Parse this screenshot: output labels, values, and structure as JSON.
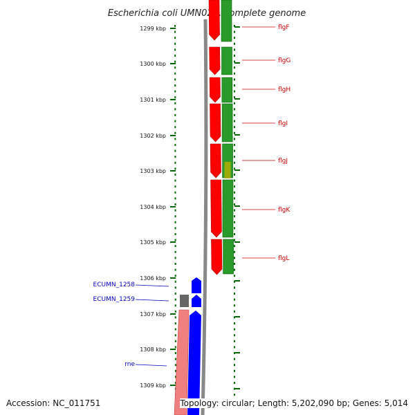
{
  "title": "Escherichia coli UMN026, complete genome",
  "accession": "Accession: NC_011751",
  "topology": "Topology: circular; Length: 5,202,090 bp; Genes: 5,014",
  "colors": {
    "forward_cds": "#ff0000",
    "reverse_cds": "#0000ff",
    "cds_green": "#2a9a2a",
    "cds_olive": "#b8b000",
    "unknown": "#666666",
    "rne_pink": "#f08080",
    "ruler_green": "#006600",
    "backbone_grey": "#888888"
  },
  "ruler_labels": [
    "1299 kbp",
    "1300 kbp",
    "1301 kbp",
    "1302 kbp",
    "1303 kbp",
    "1304 kbp",
    "1305 kbp",
    "1306 kbp",
    "1307 kbp",
    "1308 kbp",
    "1309 kbp"
  ],
  "genes_right": [
    {
      "name": "flgF"
    },
    {
      "name": "flgG"
    },
    {
      "name": "flgH"
    },
    {
      "name": "flgI"
    },
    {
      "name": "flgJ"
    },
    {
      "name": "flgK"
    },
    {
      "name": "flgL"
    }
  ],
  "genes_left": [
    {
      "name": "ECUMN_1258"
    },
    {
      "name": "ECUMN_1259"
    },
    {
      "name": "rne"
    }
  ]
}
